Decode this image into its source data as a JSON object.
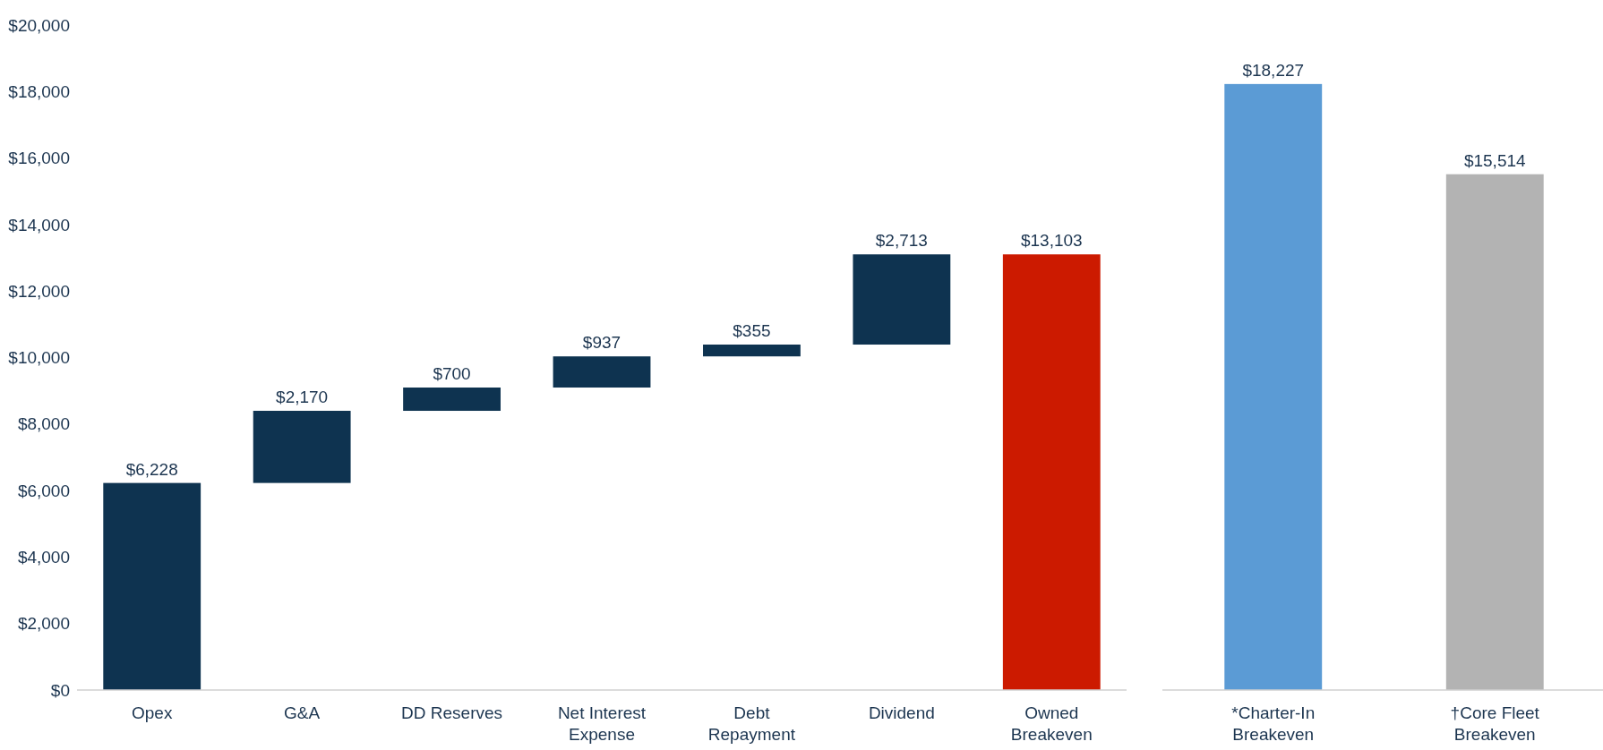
{
  "chart_data": [
    {
      "type": "bar",
      "categories": [
        "Opex",
        "G&A",
        "DD Reserves",
        "Net Interest Expense",
        "Debt Repayment",
        "Dividend",
        "Owned Breakeven"
      ],
      "values": [
        6228,
        2170,
        700,
        937,
        355,
        2713,
        13103
      ],
      "base": [
        0,
        6228,
        8398,
        9098,
        10035,
        10390,
        0
      ],
      "colors": [
        "#0e3350",
        "#0e3350",
        "#0e3350",
        "#0e3350",
        "#0e3350",
        "#0e3350",
        "#cc1a00"
      ],
      "value_labels": [
        "$6,228",
        "$2,170",
        "$700",
        "$937",
        "$355",
        "$2,713",
        "$13,103"
      ],
      "ylim": [
        0,
        20000
      ],
      "yticks": [
        {
          "value": 0,
          "label": "$0"
        },
        {
          "value": 2000,
          "label": "$2,000"
        },
        {
          "value": 4000,
          "label": "$4,000"
        },
        {
          "value": 6000,
          "label": "$6,000"
        },
        {
          "value": 8000,
          "label": "$8,000"
        },
        {
          "value": 10000,
          "label": "$10,000"
        },
        {
          "value": 12000,
          "label": "$12,000"
        },
        {
          "value": 14000,
          "label": "$14,000"
        },
        {
          "value": 16000,
          "label": "$16,000"
        },
        {
          "value": 18000,
          "label": "$18,000"
        },
        {
          "value": 20000,
          "label": "$20,000"
        }
      ],
      "grid": false
    },
    {
      "type": "bar",
      "categories": [
        "*Charter-In Breakeven",
        "†Core Fleet Breakeven"
      ],
      "values": [
        18227,
        15514
      ],
      "colors": [
        "#5b9bd5",
        "#b3b3b3"
      ],
      "value_labels": [
        "$18,227",
        "$15,514"
      ],
      "ylim": [
        0,
        20000
      ],
      "tick_labels": "x",
      "grid": false
    }
  ]
}
